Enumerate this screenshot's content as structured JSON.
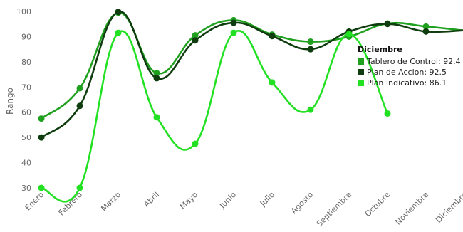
{
  "chart_data": {
    "type": "line",
    "title": "",
    "xlabel": "",
    "ylabel": "Rango",
    "ylim": [
      30,
      100
    ],
    "yticks": [
      30,
      40,
      50,
      60,
      70,
      80,
      90,
      100
    ],
    "grid": false,
    "categories": [
      "Enero",
      "Febrero",
      "Marzo",
      "Abril",
      "Mayo",
      "Junio",
      "Julio",
      "Agosto",
      "Septiembre",
      "Octubre",
      "Noviembre",
      "Diciembre"
    ],
    "series": [
      {
        "name": "Tablero de Control",
        "color": "#1fa01f",
        "values": [
          57.5,
          69.5,
          99.5,
          75.5,
          90.5,
          96.5,
          90.8,
          88,
          90,
          95.2,
          94,
          92.4
        ]
      },
      {
        "name": "Plan de Accion",
        "color": "#0f3d0f",
        "values": [
          50,
          62.5,
          99.8,
          73.5,
          88.5,
          95.5,
          90.2,
          85,
          92,
          95,
          92,
          92.5
        ]
      },
      {
        "name": "Plan Indicativo",
        "color": "#22e022",
        "values": [
          30,
          30,
          91.5,
          58,
          47.5,
          91.5,
          71.8,
          61,
          91,
          59.5,
          null,
          86.1
        ]
      }
    ],
    "tooltip": {
      "category": "Diciembre",
      "items": [
        {
          "label": "Tablero de Control: 92.4",
          "color": "#1fa01f"
        },
        {
          "label": "Plan de Accion: 92.5",
          "color": "#0f3d0f"
        },
        {
          "label": "Plan Indicativo: 86.1",
          "color": "#22e022"
        }
      ]
    }
  }
}
